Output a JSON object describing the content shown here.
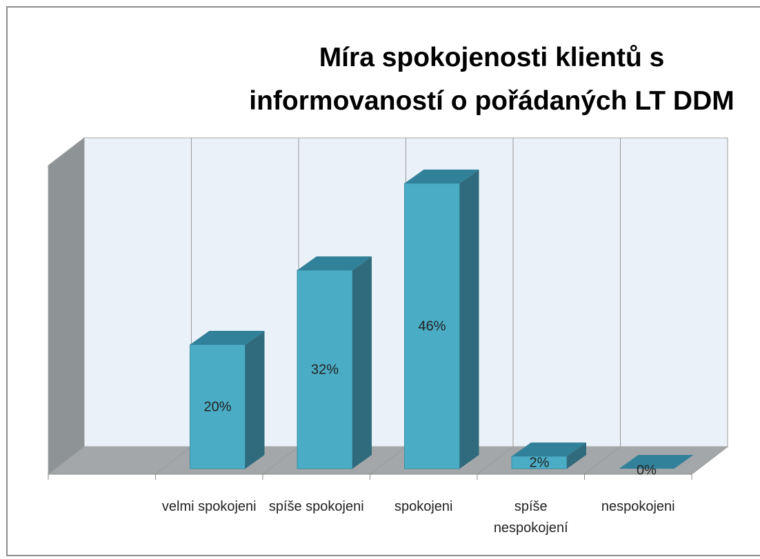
{
  "chart_data": {
    "type": "bar3d",
    "title": "Míra spokojenosti klientů s\ninformovaností o pořádaných LT DDM",
    "categories": [
      null,
      "velmi spokojeni",
      "spíše spokojeni",
      "spokojeni",
      "spíše nespokojení",
      "nespokojeni"
    ],
    "values": [
      null,
      20,
      32,
      46,
      2,
      0
    ],
    "value_labels": [
      null,
      "20%",
      "32%",
      "46%",
      "2%",
      "0%"
    ],
    "color": "#4bacc6"
  }
}
